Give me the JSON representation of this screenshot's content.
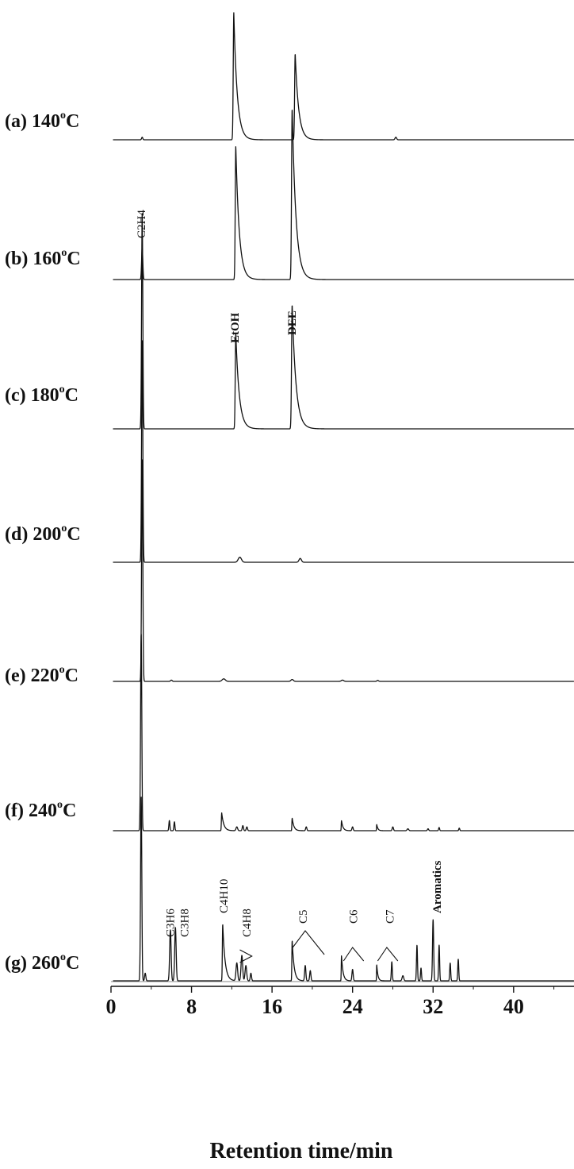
{
  "chart_data": {
    "type": "line",
    "xlabel": "Retention time/min",
    "xlim": [
      0,
      46
    ],
    "xticks": [
      0,
      8,
      16,
      24,
      32,
      40
    ],
    "line_color": "#111111",
    "panels": [
      {
        "label": "(a) 140",
        "unit": "C",
        "peaks": [
          {
            "t": 3.1,
            "h": 0.02,
            "w": 0.15
          },
          {
            "t": 12.2,
            "h": 1.0,
            "w": 0.9,
            "tail": true
          },
          {
            "t": 18.3,
            "h": 0.68,
            "w": 0.9,
            "tail": true
          },
          {
            "t": 28.3,
            "h": 0.02,
            "w": 0.2
          }
        ]
      },
      {
        "label": "(b) 160",
        "unit": "C",
        "annotations": [
          {
            "text": "C2H4",
            "t": 3.1,
            "vertical": true
          }
        ],
        "peaks": [
          {
            "t": 3.1,
            "h": 0.25,
            "w": 0.15
          },
          {
            "t": 12.4,
            "h": 1.05,
            "w": 0.9,
            "tail": true
          },
          {
            "t": 18.0,
            "h": 1.35,
            "w": 1.0,
            "tail": true
          }
        ]
      },
      {
        "label": "(c) 180",
        "unit": "C",
        "annotations": [
          {
            "text": "EtOH",
            "t": 12.4,
            "vertical": true
          },
          {
            "text": "DEE",
            "t": 18.1,
            "vertical": true
          }
        ],
        "peaks": [
          {
            "t": 3.1,
            "h": 1.7,
            "w": 0.15
          },
          {
            "t": 12.4,
            "h": 0.75,
            "w": 0.9,
            "tail": true
          },
          {
            "t": 18.0,
            "h": 0.98,
            "w": 1.0,
            "tail": true
          }
        ]
      },
      {
        "label": "(d) 200",
        "unit": "C",
        "peaks": [
          {
            "t": 3.1,
            "h": 1.75,
            "w": 0.15
          },
          {
            "t": 12.8,
            "h": 0.04,
            "w": 0.4
          },
          {
            "t": 18.8,
            "h": 0.03,
            "w": 0.3
          }
        ]
      },
      {
        "label": "(e) 220",
        "unit": "C",
        "peaks": [
          {
            "t": 3.1,
            "h": 1.75,
            "w": 0.15
          },
          {
            "t": 6.0,
            "h": 0.01,
            "w": 0.2
          },
          {
            "t": 11.2,
            "h": 0.02,
            "w": 0.4
          },
          {
            "t": 18.0,
            "h": 0.015,
            "w": 0.3
          },
          {
            "t": 23.0,
            "h": 0.01,
            "w": 0.3
          },
          {
            "t": 26.5,
            "h": 0.008,
            "w": 0.2
          }
        ]
      },
      {
        "label": "(f) 240",
        "unit": "C",
        "peaks": [
          {
            "t": 3.0,
            "h": 1.55,
            "w": 0.15
          },
          {
            "t": 5.8,
            "h": 0.08,
            "w": 0.12
          },
          {
            "t": 6.3,
            "h": 0.07,
            "w": 0.12
          },
          {
            "t": 11.0,
            "h": 0.14,
            "w": 0.55,
            "tail": true
          },
          {
            "t": 12.5,
            "h": 0.03,
            "w": 0.2
          },
          {
            "t": 13.1,
            "h": 0.04,
            "w": 0.15
          },
          {
            "t": 13.5,
            "h": 0.03,
            "w": 0.15
          },
          {
            "t": 18.0,
            "h": 0.1,
            "w": 0.45,
            "tail": true
          },
          {
            "t": 19.4,
            "h": 0.03,
            "w": 0.15
          },
          {
            "t": 22.9,
            "h": 0.08,
            "w": 0.4,
            "tail": true
          },
          {
            "t": 24.0,
            "h": 0.03,
            "w": 0.15
          },
          {
            "t": 26.4,
            "h": 0.05,
            "w": 0.3,
            "tail": true
          },
          {
            "t": 28.0,
            "h": 0.03,
            "w": 0.15
          },
          {
            "t": 29.5,
            "h": 0.015,
            "w": 0.2
          },
          {
            "t": 31.5,
            "h": 0.015,
            "w": 0.15
          },
          {
            "t": 32.6,
            "h": 0.025,
            "w": 0.12
          },
          {
            "t": 34.6,
            "h": 0.02,
            "w": 0.12
          }
        ]
      },
      {
        "label": "(g) 260",
        "unit": "C",
        "annotations": [
          {
            "text": "C3H6",
            "t": 6.0,
            "vertical": true
          },
          {
            "text": "C3H8",
            "t": 7.4,
            "vertical": true
          },
          {
            "text": "C4H10",
            "t": 11.3,
            "vertical": true
          },
          {
            "text": "C4H8",
            "t": 13.6,
            "vertical": true
          },
          {
            "text": "C5",
            "t": 19.2,
            "vertical": true
          },
          {
            "text": "C6",
            "t": 24.2,
            "vertical": true
          },
          {
            "text": "C7",
            "t": 27.8,
            "vertical": true
          },
          {
            "text": "Aromatics",
            "t": 32.5,
            "vertical": true
          }
        ],
        "peaks": [
          {
            "t": 3.0,
            "h": 1.45,
            "w": 0.15
          },
          {
            "t": 3.4,
            "h": 0.06,
            "w": 0.15
          },
          {
            "t": 5.9,
            "h": 0.4,
            "w": 0.18
          },
          {
            "t": 6.4,
            "h": 0.42,
            "w": 0.18
          },
          {
            "t": 11.1,
            "h": 0.45,
            "w": 0.6,
            "tail": true
          },
          {
            "t": 12.5,
            "h": 0.14,
            "w": 0.2
          },
          {
            "t": 13.0,
            "h": 0.2,
            "w": 0.2
          },
          {
            "t": 13.4,
            "h": 0.12,
            "w": 0.2
          },
          {
            "t": 13.9,
            "h": 0.06,
            "w": 0.15
          },
          {
            "t": 18.0,
            "h": 0.32,
            "w": 0.5,
            "tail": true
          },
          {
            "t": 19.3,
            "h": 0.12,
            "w": 0.15
          },
          {
            "t": 19.8,
            "h": 0.08,
            "w": 0.15
          },
          {
            "t": 22.9,
            "h": 0.2,
            "w": 0.4,
            "tail": true
          },
          {
            "t": 24.0,
            "h": 0.09,
            "w": 0.15
          },
          {
            "t": 26.4,
            "h": 0.13,
            "w": 0.3,
            "tail": true
          },
          {
            "t": 27.9,
            "h": 0.15,
            "w": 0.12
          },
          {
            "t": 29.0,
            "h": 0.04,
            "w": 0.2
          },
          {
            "t": 30.4,
            "h": 0.28,
            "w": 0.12
          },
          {
            "t": 30.8,
            "h": 0.1,
            "w": 0.12
          },
          {
            "t": 32.0,
            "h": 0.48,
            "w": 0.14
          },
          {
            "t": 32.6,
            "h": 0.28,
            "w": 0.12
          },
          {
            "t": 33.7,
            "h": 0.14,
            "w": 0.12
          },
          {
            "t": 34.5,
            "h": 0.17,
            "w": 0.12
          }
        ]
      }
    ]
  }
}
